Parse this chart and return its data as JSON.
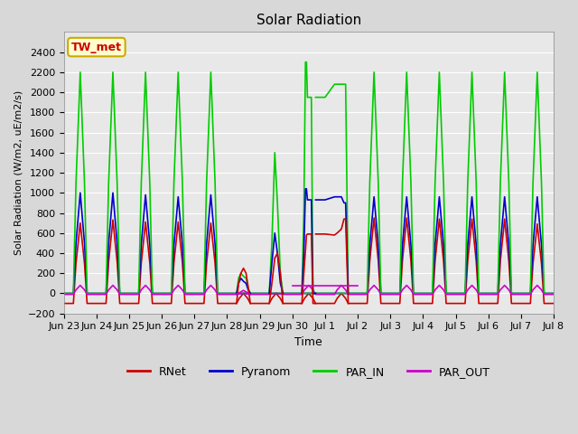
{
  "title": "Solar Radiation",
  "ylabel": "Solar Radiation (W/m2, uE/m2/s)",
  "xlabel": "Time",
  "ylim": [
    -200,
    2600
  ],
  "yticks": [
    -200,
    0,
    200,
    400,
    600,
    800,
    1000,
    1200,
    1400,
    1600,
    1800,
    2000,
    2200,
    2400
  ],
  "bg_color": "#d8d8d8",
  "plot_bg": "#e8e8e8",
  "series_colors": {
    "RNet": "#cc0000",
    "Pyranom": "#0000cc",
    "PAR_IN": "#00cc00",
    "PAR_OUT": "#cc00cc"
  },
  "x_tick_labels": [
    "Jun 23",
    "Jun 24",
    "Jun 25",
    "Jun 26",
    "Jun 27",
    "Jun 28",
    "Jun 29",
    "Jun 30",
    "Jul 1",
    "Jul 2",
    "Jul 3",
    "Jul 4",
    "Jul 5",
    "Jul 6",
    "Jul 7",
    "Jul 8"
  ],
  "annotation_box": {
    "text": "TW_met",
    "bg": "#ffffcc",
    "edge": "#ccaa00"
  }
}
